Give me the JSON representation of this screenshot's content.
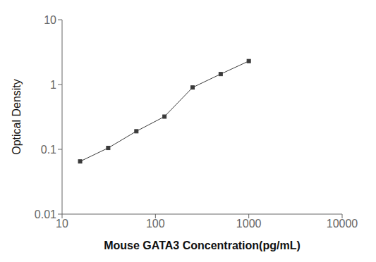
{
  "chart_data": {
    "type": "line",
    "x": [
      15.6,
      31.2,
      62.5,
      125,
      250,
      500,
      1000
    ],
    "values": [
      0.065,
      0.105,
      0.19,
      0.32,
      0.9,
      1.45,
      2.3
    ],
    "xlabel": "Mouse GATA3 Concentration(pg/mL)",
    "ylabel": "Optical Density",
    "xlim": [
      10,
      10000
    ],
    "ylim": [
      0.01,
      10
    ],
    "xticks": [
      10,
      100,
      1000,
      10000
    ],
    "yticks": [
      0.01,
      0.1,
      1,
      10
    ],
    "log": true,
    "grid": false,
    "color": "#3a3a3a",
    "marker": "square"
  }
}
